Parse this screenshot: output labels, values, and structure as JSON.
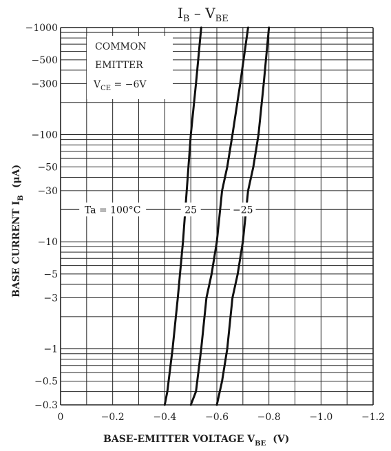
{
  "chart_data": {
    "type": "line",
    "title_main": "I",
    "title_sub": "B",
    "title_sep": " – ",
    "title_main2": "V",
    "title_sub2": "BE",
    "xlabel_main": "BASE-EMITTER VOLTAGE  V",
    "xlabel_sub": "BE",
    "xlabel_unit": "(V)",
    "ylabel_main": "BASE CURRENT  I",
    "ylabel_sub": "B",
    "ylabel_unit": "(μA)",
    "x_scale": "linear",
    "y_scale": "log",
    "x_ticks": [
      0,
      -0.2,
      -0.4,
      -0.6,
      -0.8,
      -1.0,
      -1.2
    ],
    "x_tick_labels": [
      "0",
      "−0.2",
      "−0.4",
      "−0.6",
      "−0.8",
      "−1.0",
      "−1.2"
    ],
    "xlim": [
      0,
      -1.2
    ],
    "ylim": [
      -0.3,
      -1000
    ],
    "y_ticks": [
      -0.3,
      -0.5,
      -1,
      -3,
      -5,
      -10,
      -30,
      -50,
      -100,
      -300,
      -500,
      -1000
    ],
    "y_tick_labels": [
      "−0.3",
      "−0.5",
      "−1",
      "−3",
      "−5",
      "−10",
      "−30",
      "−50",
      "−100",
      "−300",
      "−500",
      "−1000"
    ],
    "grid": true,
    "conditions": {
      "line1": "COMMON",
      "line2": "EMITTER",
      "line3_main": "V",
      "line3_sub": "CE",
      "line3_val": " = −6V"
    },
    "series": [
      {
        "name": "Ta = 100°C",
        "x": [
          -0.4,
          -0.41,
          -0.43,
          -0.45,
          -0.47,
          -0.5,
          -0.52,
          -0.54
        ],
        "y": [
          -0.3,
          -0.4,
          -1,
          -3,
          -10,
          -100,
          -300,
          -1000
        ]
      },
      {
        "name": "25",
        "x": [
          -0.5,
          -0.52,
          -0.54,
          -0.56,
          -0.58,
          -0.6,
          -0.62,
          -0.64,
          -0.66,
          -0.69,
          -0.72
        ],
        "y": [
          -0.3,
          -0.4,
          -1,
          -3,
          -5,
          -10,
          -30,
          -50,
          -100,
          -300,
          -1000
        ]
      },
      {
        "name": "−25",
        "x": [
          -0.6,
          -0.62,
          -0.64,
          -0.66,
          -0.68,
          -0.7,
          -0.72,
          -0.74,
          -0.76,
          -0.78,
          -0.8
        ],
        "y": [
          -0.3,
          -0.5,
          -1,
          -3,
          -5,
          -10,
          -30,
          -50,
          -100,
          -300,
          -1000
        ]
      }
    ],
    "curve_labels": [
      "Ta = 100°C",
      "25",
      "−25"
    ],
    "curve_label_x": [
      -0.2,
      -0.5,
      -0.7
    ],
    "curve_label_y": [
      -20,
      -20,
      -20
    ]
  }
}
